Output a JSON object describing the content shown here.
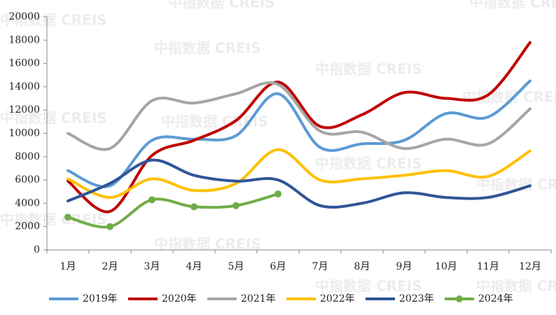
{
  "watermark": "中指数据 CREIS",
  "chart_data": {
    "type": "line",
    "categories": [
      "1月",
      "2月",
      "3月",
      "4月",
      "5月",
      "6月",
      "7月",
      "8月",
      "9月",
      "10月",
      "11月",
      "12月"
    ],
    "ylim": [
      0,
      20000
    ],
    "yticks": [
      0,
      2000,
      4000,
      6000,
      8000,
      10000,
      12000,
      14000,
      16000,
      18000,
      20000
    ],
    "smooth": true,
    "series": [
      {
        "name": "2019年",
        "color": "#5b9bd5",
        "values": [
          6800,
          5500,
          9400,
          9500,
          9800,
          13400,
          8800,
          9100,
          9400,
          11700,
          11400,
          14500
        ]
      },
      {
        "name": "2020年",
        "color": "#c00000",
        "values": [
          5900,
          3300,
          8100,
          9400,
          11100,
          14400,
          10600,
          11600,
          13500,
          13000,
          13300,
          17800
        ]
      },
      {
        "name": "2021年",
        "color": "#a5a5a5",
        "values": [
          10000,
          8700,
          12800,
          12600,
          13400,
          14200,
          10200,
          10100,
          8700,
          9500,
          9100,
          12100
        ]
      },
      {
        "name": "2022年",
        "color": "#ffc000",
        "values": [
          6100,
          4500,
          6100,
          5100,
          5700,
          8600,
          6000,
          6100,
          6400,
          6800,
          6300,
          8500
        ]
      },
      {
        "name": "2023年",
        "color": "#2f5597",
        "values": [
          4200,
          5700,
          7700,
          6400,
          5900,
          6000,
          3800,
          4000,
          4900,
          4500,
          4500,
          5500
        ]
      },
      {
        "name": "2024年",
        "color": "#70ad47",
        "markers": true,
        "values": [
          2800,
          2000,
          4300,
          3700,
          3800,
          4800,
          null,
          null,
          null,
          null,
          null,
          null
        ]
      }
    ]
  }
}
